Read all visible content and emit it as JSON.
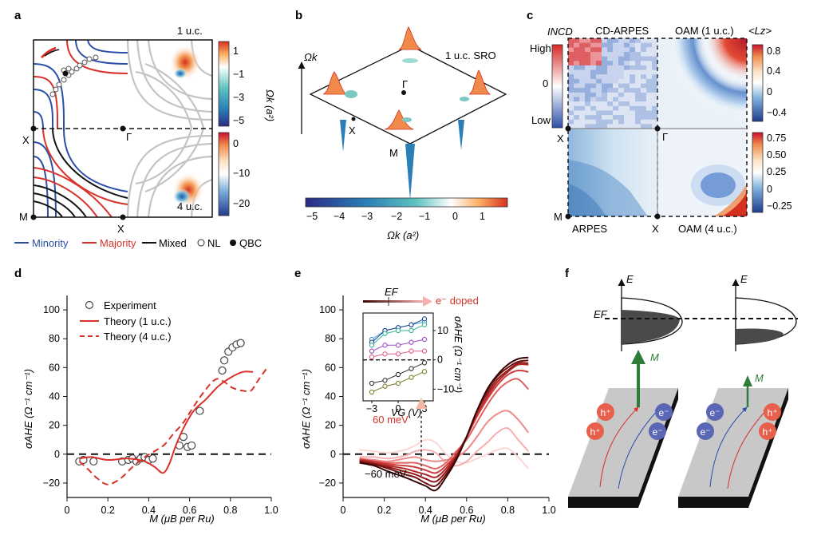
{
  "panels": {
    "a": {
      "letter": "a",
      "top_label": "1 u.c.",
      "bottom_label": "4 u.c.",
      "point_x": "X",
      "point_m": "M",
      "point_gamma": "Γ",
      "point_x_bottom": "X",
      "cbar_top_ticks": [
        "1",
        "−1",
        "−3",
        "−5"
      ],
      "cbar_bottom_ticks": [
        "0",
        "−10",
        "−20"
      ],
      "cbar_label": "Ωk (a²)",
      "legend": {
        "minority": "Minority",
        "majority": "Majority",
        "mixed": "Mixed",
        "nl": "NL",
        "qbc": "QBC"
      },
      "colors": {
        "minority": "#2b4fa8",
        "majority": "#d8322b",
        "mixed": "#111111"
      }
    },
    "b": {
      "letter": "b",
      "axis_label": "Ωk",
      "title": "1 u.c. SRO",
      "point_gamma": "Γ",
      "point_x": "X",
      "point_m": "M",
      "cbar_ticks": [
        "−5",
        "−4",
        "−3",
        "−2",
        "−1",
        "0",
        "1"
      ],
      "cbar_label": "Ωk (a²)"
    },
    "c": {
      "letter": "c",
      "label_incd": "INCD",
      "label_cd_arpes": "CD-ARPES",
      "label_oam1": "OAM (1 u.c.)",
      "label_lz": "<Lz>",
      "label_high": "High",
      "label_zero": "0",
      "label_low": "Low",
      "label_arpes": "ARPES",
      "label_oam4": "OAM (4 u.c.)",
      "point_x_left": "X",
      "point_gamma": "Γ",
      "point_m": "M",
      "point_x_bottom": "X",
      "cbar_top_ticks": [
        "0.8",
        "0.4",
        "0",
        "−0.4"
      ],
      "cbar_bottom_ticks": [
        "0.75",
        "0.50",
        "0.25",
        "0",
        "−0.25"
      ]
    },
    "d": {
      "letter": "d",
      "ylabel": "σAHE (Ω⁻¹ cm⁻¹)",
      "xlabel": "M (μB per Ru)",
      "legend": {
        "experiment": "Experiment",
        "theory1": "Theory (1 u.c.)",
        "theory4": "Theory (4 u.c.)"
      }
    },
    "e": {
      "letter": "e",
      "ylabel": "σAHE (Ω⁻¹ cm⁻¹)",
      "xlabel": "M (μB per Ru)",
      "ef_label": "EF",
      "doped_label": "e⁻ doped",
      "label_60": "60 meV",
      "label_m60": "−60 meV",
      "inset_xlabel": "VG (V)",
      "inset_ylabel": "σAHE (Ω⁻¹ cm⁻¹)",
      "inset_xticks": [
        "−3",
        "0",
        "3"
      ],
      "inset_yticks": [
        "10",
        "0",
        "−10"
      ]
    },
    "f": {
      "letter": "f",
      "e_label_left": "E",
      "e_label_right": "E",
      "ef_label": "EF",
      "m_left": "M",
      "m_right": "M",
      "left_carriers": [
        "h⁺",
        "h⁺",
        "e⁻",
        "e⁻"
      ],
      "right_carriers": [
        "e⁻",
        "e⁻",
        "h⁺",
        "h⁺"
      ]
    }
  },
  "chart_data": [
    {
      "panel": "d",
      "type": "scatter",
      "xlabel": "M (μB per Ru)",
      "ylabel": "σAHE (Ω⁻¹ cm⁻¹)",
      "xlim": [
        0,
        1.0
      ],
      "ylim": [
        -30,
        110
      ],
      "xticks": [
        0,
        0.2,
        0.4,
        0.6,
        0.8,
        1.0
      ],
      "yticks": [
        -20,
        0,
        20,
        40,
        60,
        80,
        100
      ],
      "series": [
        {
          "name": "Experiment",
          "kind": "points",
          "x": [
            0.06,
            0.08,
            0.13,
            0.27,
            0.3,
            0.32,
            0.34,
            0.36,
            0.38,
            0.4,
            0.42,
            0.55,
            0.57,
            0.59,
            0.61,
            0.65,
            0.76,
            0.77,
            0.79,
            0.81,
            0.83,
            0.85
          ],
          "y": [
            -5,
            -4,
            -5,
            -5,
            -4,
            -3,
            -5,
            -3,
            -2,
            -4,
            -3,
            6,
            12,
            5,
            6,
            30,
            58,
            65,
            71,
            74,
            76,
            77
          ]
        },
        {
          "name": "Theory (1 u.c.)",
          "kind": "solid",
          "x": [
            0.06,
            0.12,
            0.2,
            0.3,
            0.38,
            0.43,
            0.47,
            0.5,
            0.53,
            0.57,
            0.62,
            0.68,
            0.74,
            0.8,
            0.86,
            0.91
          ],
          "y": [
            -3,
            -2,
            -4,
            -3,
            -5,
            -9,
            -13,
            -7,
            5,
            18,
            30,
            38,
            47,
            53,
            57,
            57
          ]
        },
        {
          "name": "Theory (4 u.c.)",
          "kind": "dashed",
          "x": [
            0.06,
            0.1,
            0.15,
            0.2,
            0.26,
            0.32,
            0.38,
            0.44,
            0.48,
            0.52,
            0.57,
            0.62,
            0.68,
            0.73,
            0.77,
            0.81,
            0.86,
            0.9,
            0.93,
            0.98
          ],
          "y": [
            -5,
            -10,
            -17,
            -21,
            -17,
            -9,
            -2,
            3,
            7,
            14,
            22,
            33,
            45,
            52,
            50,
            46,
            44,
            44,
            50,
            60
          ]
        }
      ],
      "legend_position": "top-left"
    },
    {
      "panel": "e",
      "type": "line",
      "xlabel": "M (μB per Ru)",
      "ylabel": "σAHE (Ω⁻¹ cm⁻¹)",
      "xlim": [
        0,
        1.0
      ],
      "ylim": [
        -30,
        110
      ],
      "xticks": [
        0,
        0.2,
        0.4,
        0.6,
        0.8,
        1.0
      ],
      "yticks": [
        -20,
        0,
        20,
        40,
        60,
        80,
        100
      ],
      "x": [
        0.08,
        0.15,
        0.22,
        0.3,
        0.35,
        0.4,
        0.45,
        0.5,
        0.55,
        0.6,
        0.65,
        0.7,
        0.75,
        0.8,
        0.85,
        0.9
      ],
      "series": [
        {
          "color": "#fbd7d7",
          "values": [
            3,
            2,
            1,
            3,
            6,
            10,
            8,
            0,
            -5,
            -6,
            -3,
            0,
            3,
            4,
            -2,
            -10
          ]
        },
        {
          "color": "#f5b0b0",
          "values": [
            -2,
            -2,
            -3,
            -1,
            2,
            3,
            1,
            -6,
            -8,
            -5,
            2,
            8,
            15,
            18,
            10,
            2
          ]
        },
        {
          "color": "#ee8a8a",
          "values": [
            -3,
            -4,
            -5,
            -3,
            -2,
            -4,
            -5,
            -4,
            -2,
            3,
            12,
            22,
            28,
            30,
            24,
            15
          ]
        },
        {
          "color": "#e06060",
          "values": [
            -3,
            -5,
            -6,
            -6,
            -6,
            -8,
            -10,
            -6,
            2,
            10,
            22,
            34,
            44,
            50,
            52,
            45
          ]
        },
        {
          "color": "#cc3a3a",
          "values": [
            -4,
            -5,
            -7,
            -8,
            -9,
            -11,
            -13,
            -8,
            0,
            12,
            26,
            38,
            48,
            55,
            58,
            57
          ]
        },
        {
          "color": "#b22727",
          "values": [
            -4,
            -6,
            -8,
            -10,
            -12,
            -14,
            -16,
            -10,
            -1,
            12,
            28,
            40,
            50,
            57,
            62,
            62
          ]
        },
        {
          "color": "#901b1b",
          "values": [
            -5,
            -7,
            -9,
            -12,
            -14,
            -17,
            -19,
            -12,
            -2,
            12,
            30,
            42,
            52,
            58,
            63,
            63
          ]
        },
        {
          "color": "#6e1010",
          "values": [
            -5,
            -7,
            -10,
            -14,
            -16,
            -20,
            -22,
            -14,
            -3,
            12,
            30,
            44,
            54,
            60,
            64,
            65
          ]
        },
        {
          "color": "#3a0606",
          "values": [
            -6,
            -8,
            -12,
            -16,
            -19,
            -22,
            -25,
            -16,
            -4,
            12,
            30,
            45,
            55,
            62,
            66,
            67
          ]
        }
      ],
      "inset": {
        "xlabel": "VG (V)",
        "ylabel": "σAHE (Ω⁻¹ cm⁻¹)",
        "xlim": [
          -4,
          4
        ],
        "ylim": [
          -14,
          16
        ],
        "x": [
          -3,
          -1.5,
          0,
          1.5,
          3
        ],
        "series": [
          {
            "color": "#3aa0d8",
            "values": [
              7,
              10,
              11,
              12,
              13
            ]
          },
          {
            "color": "#1d3f91",
            "values": [
              6,
              10,
              11,
              12,
              14
            ]
          },
          {
            "color": "#37b39d",
            "values": [
              5,
              9,
              10,
              10,
              12
            ]
          },
          {
            "color": "#9c4cc2",
            "values": [
              3,
              5,
              5,
              6,
              7
            ]
          },
          {
            "color": "#e45e86",
            "values": [
              1,
              2,
              2,
              3,
              3
            ]
          },
          {
            "color": "#333333",
            "values": [
              -8,
              -7,
              -5,
              -3,
              -1
            ]
          },
          {
            "color": "#7d7d2a",
            "values": [
              -11,
              -9,
              -8,
              -6,
              -4
            ]
          }
        ]
      }
    }
  ]
}
